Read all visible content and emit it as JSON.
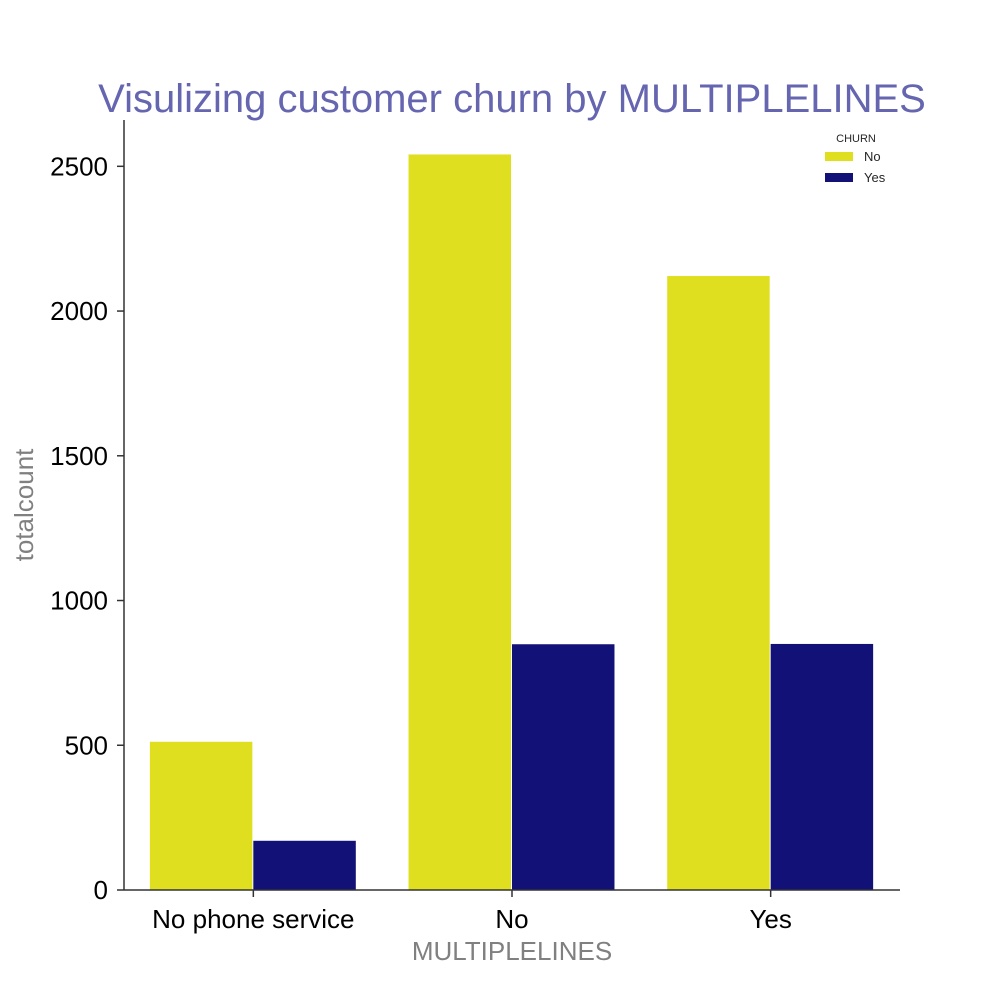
{
  "chart_data": {
    "type": "bar",
    "title": "Visulizing customer churn by MULTIPLELINES",
    "xlabel": "MULTIPLELINES",
    "ylabel": "totalcount",
    "categories": [
      "No phone service",
      "No",
      "Yes"
    ],
    "series": [
      {
        "name": "No",
        "values": [
          512,
          2541,
          2121
        ],
        "color": "#dfdf1f"
      },
      {
        "name": "Yes",
        "values": [
          170,
          849,
          850
        ],
        "color": "#111177"
      }
    ],
    "ylim": [
      0,
      2660
    ],
    "yticks": [
      0,
      500,
      1000,
      1500,
      2000,
      2500
    ],
    "legend": {
      "title": "CHURN",
      "placement": "top-right"
    },
    "grid": false,
    "colors": {
      "title": "#6565b0",
      "axis_label": "#808080",
      "tick_label": "#000000",
      "axis_line": "#333333"
    }
  }
}
